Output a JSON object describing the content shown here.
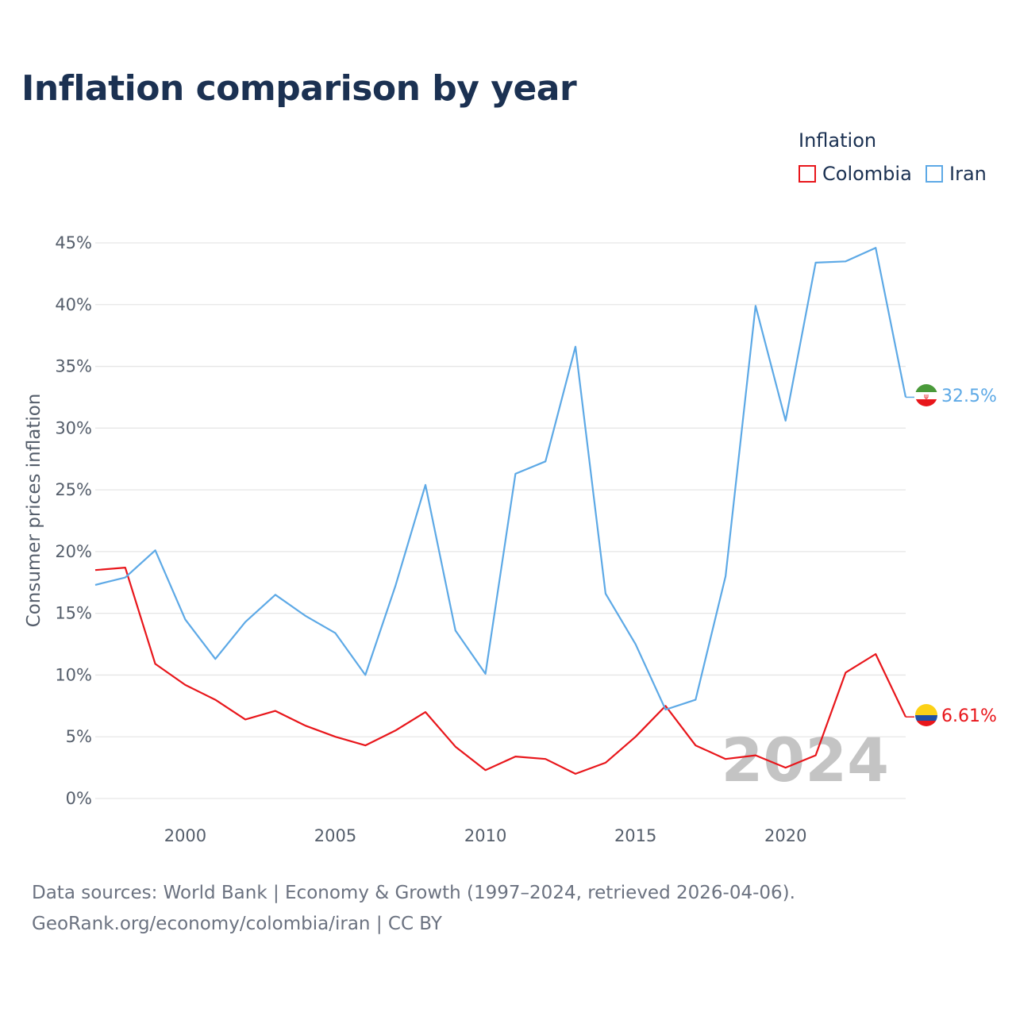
{
  "title": "Inflation comparison by year",
  "legend": {
    "title": "Inflation",
    "items": [
      {
        "label": "Colombia",
        "color": "#e8161b"
      },
      {
        "label": "Iran",
        "color": "#5da9e6"
      }
    ]
  },
  "footer": {
    "line1": "Data sources: World Bank | Economy & Growth (1997–2024, retrieved 2026-04-06).",
    "line2": "GeoRank.org/economy/colombia/iran | CC BY"
  },
  "chart_data": {
    "type": "line",
    "ylabel": "Consumer prices inflation",
    "xlabel": "",
    "x": [
      1997,
      1998,
      1999,
      2000,
      2001,
      2002,
      2003,
      2004,
      2005,
      2006,
      2007,
      2008,
      2009,
      2010,
      2011,
      2012,
      2013,
      2014,
      2015,
      2016,
      2017,
      2018,
      2019,
      2020,
      2021,
      2022,
      2023,
      2024
    ],
    "xlim": [
      1997,
      2024
    ],
    "ylim": [
      0,
      45
    ],
    "xticks": [
      2000,
      2005,
      2010,
      2015,
      2020
    ],
    "yticks": [
      0,
      5,
      10,
      15,
      20,
      25,
      30,
      35,
      40,
      45
    ],
    "ytick_labels": [
      "0%",
      "5%",
      "10%",
      "15%",
      "20%",
      "25%",
      "30%",
      "35%",
      "40%",
      "45%"
    ],
    "watermark": "2024",
    "series": [
      {
        "name": "Colombia",
        "color": "#e8161b",
        "end_label": "6.61%",
        "values": [
          18.5,
          18.7,
          10.9,
          9.2,
          8.0,
          6.4,
          7.1,
          5.9,
          5.0,
          4.3,
          5.5,
          7.0,
          4.2,
          2.3,
          3.4,
          3.2,
          2.0,
          2.9,
          5.0,
          7.5,
          4.3,
          3.2,
          3.5,
          2.5,
          3.5,
          10.2,
          11.7,
          6.61
        ]
      },
      {
        "name": "Iran",
        "color": "#5da9e6",
        "end_label": "32.5%",
        "values": [
          17.3,
          17.9,
          20.1,
          14.5,
          11.3,
          14.3,
          16.5,
          14.8,
          13.4,
          10.0,
          17.2,
          25.4,
          13.6,
          10.1,
          26.3,
          27.3,
          36.6,
          16.6,
          12.5,
          7.2,
          8.0,
          18.0,
          39.9,
          30.6,
          43.4,
          43.5,
          44.6,
          32.5
        ]
      }
    ]
  }
}
